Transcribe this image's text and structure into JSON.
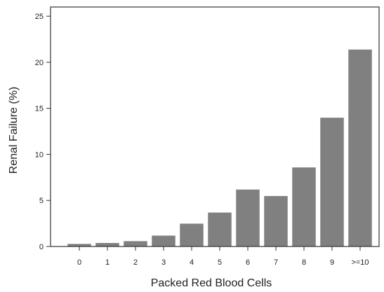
{
  "chart_data": {
    "type": "bar",
    "xlabel": "Packed Red Blood Cells",
    "ylabel": "Renal Failure (%)",
    "categories": [
      "0",
      "1",
      "2",
      "3",
      "4",
      "5",
      "6",
      "7",
      "8",
      "9",
      ">=10"
    ],
    "values": [
      0.3,
      0.4,
      0.6,
      1.2,
      2.5,
      3.7,
      6.2,
      5.5,
      8.6,
      14.0,
      21.4
    ],
    "ylim": [
      0,
      26
    ],
    "yticks": [
      0,
      5,
      10,
      15,
      20,
      25
    ],
    "grid": false,
    "bar_color": "#808080"
  }
}
